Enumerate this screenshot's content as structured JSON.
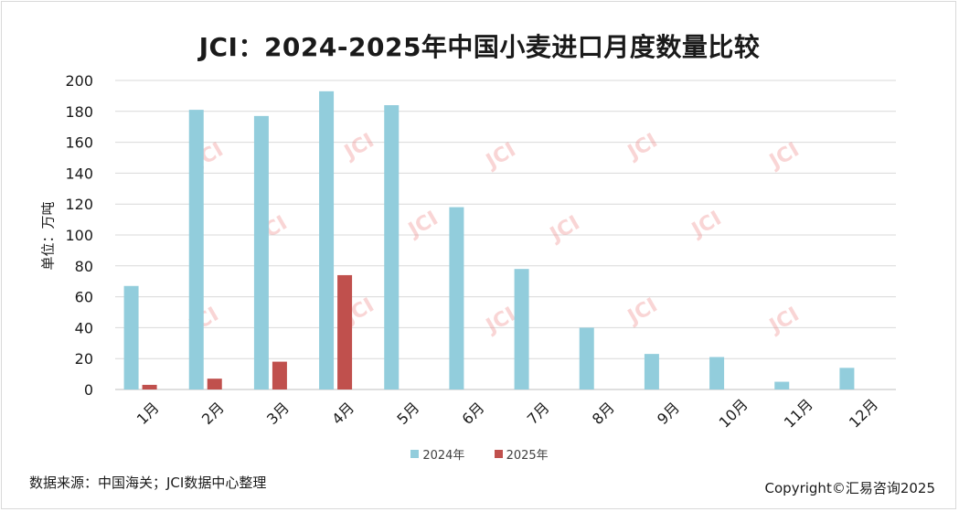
{
  "chart_data": {
    "type": "bar",
    "title": "JCI：2024-2025年中国小麦进口月度数量比较",
    "ylabel": "单位：万吨",
    "xlabel": "",
    "ylim": [
      0,
      200
    ],
    "yticks": [
      0,
      20,
      40,
      60,
      80,
      100,
      120,
      140,
      160,
      180,
      200
    ],
    "grid": true,
    "legend_position": "bottom",
    "categories": [
      "1月",
      "2月",
      "3月",
      "4月",
      "5月",
      "6月",
      "7月",
      "8月",
      "9月",
      "10月",
      "11月",
      "12月"
    ],
    "series": [
      {
        "name": "2024年",
        "color": "#92cddc",
        "values": [
          67,
          181,
          177,
          193,
          184,
          118,
          78,
          40,
          23,
          21,
          5,
          14
        ]
      },
      {
        "name": "2025年",
        "color": "#c0504d",
        "values": [
          3,
          7,
          18,
          74,
          null,
          null,
          null,
          null,
          null,
          null,
          null,
          null
        ]
      }
    ]
  },
  "footer": {
    "source": "数据来源：中国海关；JCI数据中心整理",
    "copyright": "Copyright©汇易咨询2025"
  },
  "watermark": {
    "text": "JCI"
  }
}
